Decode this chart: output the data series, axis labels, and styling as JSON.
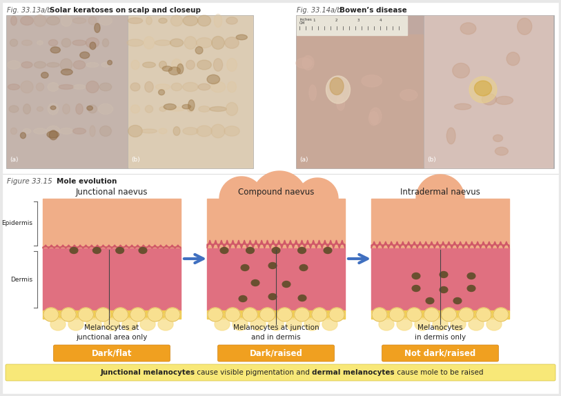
{
  "fig_title_left_italic": "Fig. 33.13a/b",
  "fig_title_left_bold": "Solar keratoses on scalp and closeup",
  "fig_title_right_italic": "Fig. 33.14a/b",
  "fig_title_right_bold": "Bowen’s disease",
  "fig_bottom_italic": "Figure 33.15",
  "fig_bottom_bold": "Mole evolution",
  "diagram_titles": [
    "Junctional naevus",
    "Compound naevus",
    "Intradermal naevus"
  ],
  "desc1_line1": "Melanocytes at",
  "desc1_line2": "junctional area only",
  "desc2_line1": "Melanocytes at junction",
  "desc2_line2": "and in dermis",
  "desc3_line1": "Melanocytes",
  "desc3_line2": "in dermis only",
  "btn1": "Dark/flat",
  "btn2": "Dark/raised",
  "btn3": "Not dark/raised",
  "note_bold1": "Junctional melanocytes",
  "note_normal1": " cause visible pigmentation and ",
  "note_bold2": "dermal melanocytes",
  "note_normal2": " cause mole to be raised",
  "white_bg": "#ffffff",
  "page_bg": "#e8e8e8",
  "photo_placeholder_l1": "#b8a898",
  "photo_placeholder_l2": "#c8b8a0",
  "photo_placeholder_r1": "#c0a898",
  "photo_placeholder_r2": "#d0b8a8",
  "epidermis_color": "#f0ae88",
  "dermis_color": "#e07080",
  "dermis_papillae_color": "#d05868",
  "fat_color": "#f0cc50",
  "fat_blob_color": "#f8e090",
  "fat_blob_edge": "#d4aa40",
  "melanocyte_color": "#6a5030",
  "btn_orange": "#f0a020",
  "btn_orange_dark": "#d08010",
  "note_bg": "#f8e878",
  "note_border": "#d4c040",
  "arrow_color": "#4070c0",
  "bracket_color": "#666666",
  "text_dark": "#222222",
  "text_gray": "#555555"
}
